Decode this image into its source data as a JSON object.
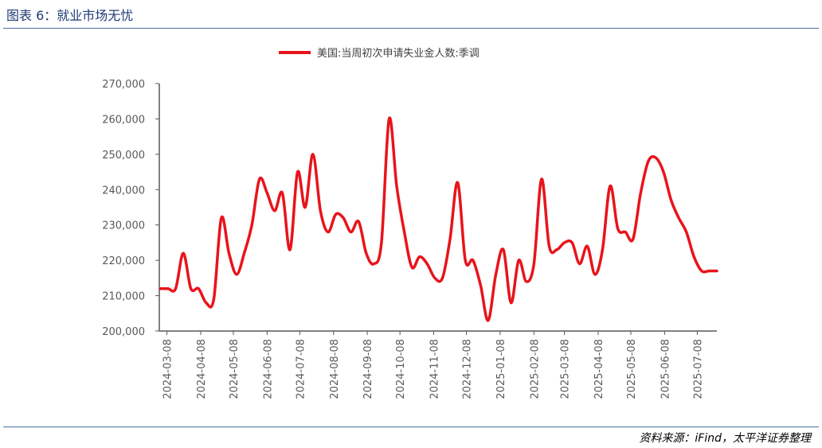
{
  "header": {
    "figure_title": "图表 6：就业市场无忧"
  },
  "footer": {
    "source": "资料来源：iFind，太平洋证券整理"
  },
  "colors": {
    "series": "#e8141b",
    "axis": "#595959",
    "rule": "#4a6fa5",
    "title": "#1f3b73"
  },
  "chart_data": {
    "type": "line",
    "title": "",
    "xlabel": "",
    "ylabel": "",
    "legend": "top-center",
    "grid": false,
    "ylim": [
      200000,
      270000
    ],
    "yticks": [
      200000,
      210000,
      220000,
      230000,
      240000,
      250000,
      260000,
      270000
    ],
    "ytick_labels": [
      "200,000",
      "210,000",
      "220,000",
      "230,000",
      "240,000",
      "250,000",
      "260,000",
      "270,000"
    ],
    "xlim": [
      "2024-03-01",
      "2025-07-26"
    ],
    "xticks": [
      "2024-03-08",
      "2024-04-08",
      "2024-05-08",
      "2024-06-08",
      "2024-07-08",
      "2024-08-08",
      "2024-09-08",
      "2024-10-08",
      "2024-11-08",
      "2024-12-08",
      "2025-01-08",
      "2025-02-08",
      "2025-03-08",
      "2025-04-08",
      "2025-05-08",
      "2025-06-08",
      "2025-07-08"
    ],
    "series": [
      {
        "name": "美国:当周初次申请失业金人数:季调",
        "x": [
          "2024-03-02",
          "2024-03-09",
          "2024-03-16",
          "2024-03-23",
          "2024-03-30",
          "2024-04-06",
          "2024-04-13",
          "2024-04-20",
          "2024-04-27",
          "2024-05-04",
          "2024-05-11",
          "2024-05-18",
          "2024-05-25",
          "2024-06-01",
          "2024-06-08",
          "2024-06-15",
          "2024-06-22",
          "2024-06-29",
          "2024-07-06",
          "2024-07-13",
          "2024-07-20",
          "2024-07-27",
          "2024-08-03",
          "2024-08-10",
          "2024-08-17",
          "2024-08-24",
          "2024-08-31",
          "2024-09-07",
          "2024-09-14",
          "2024-09-21",
          "2024-09-28",
          "2024-10-05",
          "2024-10-12",
          "2024-10-19",
          "2024-10-26",
          "2024-11-02",
          "2024-11-09",
          "2024-11-16",
          "2024-11-23",
          "2024-11-30",
          "2024-12-07",
          "2024-12-14",
          "2024-12-21",
          "2024-12-28",
          "2025-01-04",
          "2025-01-11",
          "2025-01-18",
          "2025-01-25",
          "2025-02-01",
          "2025-02-08",
          "2025-02-15",
          "2025-02-22",
          "2025-03-01",
          "2025-03-08",
          "2025-03-15",
          "2025-03-22",
          "2025-03-29",
          "2025-04-05",
          "2025-04-12",
          "2025-04-19",
          "2025-04-26",
          "2025-05-03",
          "2025-05-10",
          "2025-05-17",
          "2025-05-24",
          "2025-05-31",
          "2025-06-07",
          "2025-06-14",
          "2025-06-21",
          "2025-06-28",
          "2025-07-05",
          "2025-07-12",
          "2025-07-19",
          "2025-07-26"
        ],
        "values": [
          212000,
          212000,
          212000,
          222000,
          212000,
          212000,
          208000,
          209000,
          232000,
          222000,
          216000,
          222000,
          230000,
          243000,
          239000,
          234000,
          239000,
          223000,
          245000,
          235000,
          250000,
          234000,
          228000,
          233000,
          232000,
          228000,
          231000,
          222000,
          219000,
          225000,
          260000,
          241000,
          228000,
          218000,
          221000,
          219000,
          215000,
          215000,
          226000,
          242000,
          220000,
          220000,
          213000,
          203000,
          216000,
          223000,
          208000,
          220000,
          214000,
          219000,
          243000,
          224000,
          223000,
          225000,
          225000,
          219000,
          224000,
          216000,
          223000,
          241000,
          229000,
          228000,
          226000,
          239000,
          248000,
          249000,
          245000,
          237000,
          232000,
          228000,
          221000,
          217000,
          217000,
          217000
        ]
      }
    ]
  }
}
